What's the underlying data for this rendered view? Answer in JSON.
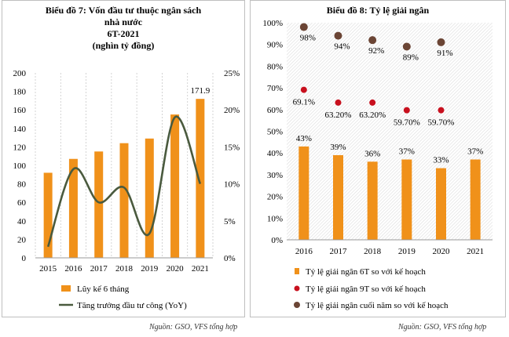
{
  "chart_data": [
    {
      "type": "bar+line",
      "title_lines": [
        "Biểu đồ 7: Vốn đầu tư thuộc ngân sách",
        "nhà nước",
        "6T-2021",
        "(nghìn tỷ đồng)"
      ],
      "categories": [
        "2015",
        "2016",
        "2017",
        "2018",
        "2019",
        "2020",
        "2021"
      ],
      "series": [
        {
          "name": "Lũy kế 6 tháng",
          "kind": "bar",
          "axis": "left",
          "color": "#F0911A",
          "values": [
            92,
            107,
            115,
            124,
            129,
            155,
            171.9
          ]
        },
        {
          "name": "Tăng trưởng đầu tư công (YoY)",
          "kind": "line",
          "axis": "right",
          "color": "#4A5A3E",
          "values": [
            1.5,
            12,
            7.5,
            9.5,
            3.3,
            19,
            10
          ]
        }
      ],
      "data_labels": [
        {
          "index": 6,
          "text": "171.9"
        }
      ],
      "ylim_left": [
        0,
        200
      ],
      "yticks_left": [
        "0",
        "20",
        "40",
        "60",
        "80",
        "100",
        "120",
        "140",
        "160",
        "180",
        "200"
      ],
      "ylim_right": [
        0,
        25
      ],
      "yticks_right": [
        "0%",
        "5%",
        "10%",
        "15%",
        "20%",
        "25%"
      ],
      "grid": "vertical dashed"
    },
    {
      "type": "bar+scatter",
      "title": "Biểu đồ 8: Tỷ lệ giải ngân",
      "categories": [
        "2016",
        "2017",
        "2018",
        "2019",
        "2020",
        "2021"
      ],
      "series": [
        {
          "name": "Tỷ lệ giải ngân 6T so với kế hoạch",
          "kind": "bar",
          "color": "#F0911A",
          "values": [
            43,
            39,
            36,
            37,
            33,
            37
          ],
          "labels": [
            "43%",
            "39%",
            "36%",
            "37%",
            "33%",
            "37%"
          ]
        },
        {
          "name": "Tỷ lệ giải ngân 9T so với kế hoạch",
          "kind": "scatter",
          "color": "#C8101E",
          "values": [
            69.1,
            63.2,
            63.2,
            59.7,
            59.7
          ],
          "labels": [
            "69.1%",
            "63.20%",
            "63.20%",
            "59.70%",
            "59.70%"
          ]
        },
        {
          "name": "Tỷ lệ giải ngân cuối năm so với kế hoạch",
          "kind": "scatter",
          "color": "#6B4535",
          "values": [
            98,
            94,
            92,
            89,
            91
          ],
          "labels": [
            "98%",
            "94%",
            "92%",
            "89%",
            "91%"
          ]
        }
      ],
      "ylim": [
        0,
        100
      ],
      "yticks": [
        "0%",
        "10%",
        "20%",
        "30%",
        "40%",
        "50%",
        "60%",
        "70%",
        "80%",
        "90%",
        "100%"
      ],
      "grid": "hatched background"
    }
  ],
  "sources": [
    "Nguồn: GSO, VFS tổng hợp",
    "Nguồn: GSO, VFS tổng hợp"
  ]
}
